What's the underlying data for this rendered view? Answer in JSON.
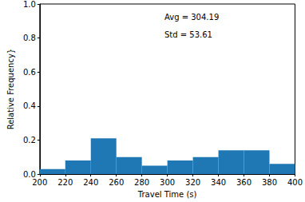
{
  "chart_data": {
    "type": "histogram",
    "xlabel": "Travel Time (s)",
    "ylabel": "Relative Frequency}",
    "annotations": [
      "Avg = 304.19",
      "Std = 53.61"
    ],
    "bins": [
      200,
      220,
      240,
      260,
      280,
      300,
      320,
      340,
      360,
      380,
      400
    ],
    "values": [
      0.03,
      0.08,
      0.21,
      0.1,
      0.05,
      0.08,
      0.1,
      0.14,
      0.14,
      0.06
    ],
    "color": "#1f77b4",
    "xlim": [
      200,
      400
    ],
    "xticks": [
      200,
      220,
      240,
      260,
      280,
      300,
      320,
      340,
      360,
      380,
      400
    ],
    "ylim": [
      0,
      1
    ],
    "yticks": [
      {
        "value": 0,
        "label": "0.0"
      },
      0.2,
      0.4,
      0.6,
      0.8,
      {
        "value": 1,
        "label": "1.0"
      }
    ],
    "grid": false
  }
}
